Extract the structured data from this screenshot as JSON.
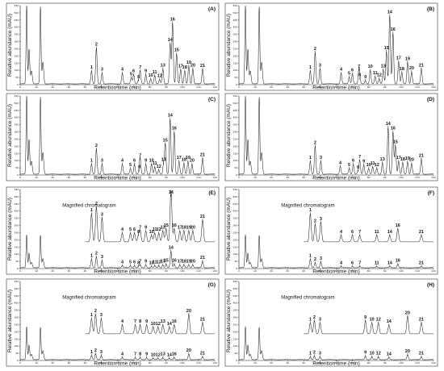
{
  "figure_name": "chromatogram-figure",
  "xlabel": "Retention time (min)",
  "ylabel": "Relative abundance (mAU)",
  "magnified_label": "Magnified chromatogram",
  "y_ticks": [
    "0",
    "50",
    "100",
    "150",
    "200",
    "250",
    "300",
    "350",
    "400",
    "450",
    "500",
    "550"
  ],
  "x_ticks": [
    "0",
    "10",
    "20",
    "30",
    "40",
    "50",
    "60",
    "70",
    "80",
    "90",
    "100",
    "110",
    "120"
  ],
  "chart_data": [
    {
      "type": "line",
      "panel": "(A)",
      "xlim": [
        0,
        120
      ],
      "ylim": [
        0,
        550
      ],
      "magnified": false,
      "peaks": [
        {
          "label": "1",
          "x": 44.0,
          "y": 95
        },
        {
          "label": "2",
          "x": 47.0,
          "y": 255
        },
        {
          "label": "3",
          "x": 50.5,
          "y": 80
        },
        {
          "label": "4",
          "x": 63.0,
          "y": 80
        },
        {
          "label": "5",
          "x": 68.5,
          "y": 48
        },
        {
          "label": "6",
          "x": 70.0,
          "y": 70
        },
        {
          "label": "7",
          "x": 74.0,
          "y": 95
        },
        {
          "label": "8",
          "x": 73.0,
          "y": 28
        },
        {
          "label": "9",
          "x": 77.5,
          "y": 70
        },
        {
          "label": "10",
          "x": 80.5,
          "y": 38
        },
        {
          "label": "11",
          "x": 83.0,
          "y": 62
        },
        {
          "label": "12",
          "x": 86.0,
          "y": 36
        },
        {
          "label": "13",
          "x": 88.0,
          "y": 110
        },
        {
          "label": "14",
          "x": 92.5,
          "y": 285
        },
        {
          "label": "15",
          "x": 96.5,
          "y": 215
        },
        {
          "label": "16",
          "x": 94.0,
          "y": 430
        },
        {
          "label": "17",
          "x": 99.0,
          "y": 105
        },
        {
          "label": "18",
          "x": 101.5,
          "y": 95
        },
        {
          "label": "19",
          "x": 104.0,
          "y": 130
        },
        {
          "label": "20",
          "x": 106.5,
          "y": 110
        },
        {
          "label": "21",
          "x": 112.5,
          "y": 108
        }
      ]
    },
    {
      "type": "line",
      "panel": "(B)",
      "xlim": [
        0,
        120
      ],
      "ylim": [
        0,
        550
      ],
      "magnified": false,
      "peaks": [
        {
          "label": "1",
          "x": 44.0,
          "y": 95
        },
        {
          "label": "2",
          "x": 47.0,
          "y": 225
        },
        {
          "label": "3",
          "x": 50.0,
          "y": 110
        },
        {
          "label": "4",
          "x": 63.0,
          "y": 80
        },
        {
          "label": "5",
          "x": 68.0,
          "y": 52
        },
        {
          "label": "6",
          "x": 70.0,
          "y": 75
        },
        {
          "label": "7",
          "x": 74.0,
          "y": 100
        },
        {
          "label": "8",
          "x": 74.5,
          "y": 42
        },
        {
          "label": "9",
          "x": 78.0,
          "y": 28
        },
        {
          "label": "10",
          "x": 81.0,
          "y": 100
        },
        {
          "label": "11",
          "x": 84.0,
          "y": 55
        },
        {
          "label": "12",
          "x": 86.5,
          "y": 42
        },
        {
          "label": "13",
          "x": 89.0,
          "y": 105
        },
        {
          "label": "14",
          "x": 93.0,
          "y": 480
        },
        {
          "label": "15",
          "x": 91.0,
          "y": 230
        },
        {
          "label": "16",
          "x": 95.0,
          "y": 360
        },
        {
          "label": "17",
          "x": 98.5,
          "y": 160
        },
        {
          "label": "18",
          "x": 100.5,
          "y": 85
        },
        {
          "label": "19",
          "x": 104.0,
          "y": 155
        },
        {
          "label": "20",
          "x": 106.5,
          "y": 90
        },
        {
          "label": "21",
          "x": 112.5,
          "y": 110
        }
      ]
    },
    {
      "type": "line",
      "panel": "(C)",
      "xlim": [
        0,
        120
      ],
      "ylim": [
        0,
        550
      ],
      "magnified": false,
      "peaks": [
        {
          "label": "1",
          "x": 44.0,
          "y": 75
        },
        {
          "label": "2",
          "x": 47.0,
          "y": 180
        },
        {
          "label": "3",
          "x": 50.5,
          "y": 75
        },
        {
          "label": "4",
          "x": 63.0,
          "y": 75
        },
        {
          "label": "5",
          "x": 68.0,
          "y": 45
        },
        {
          "label": "6",
          "x": 70.5,
          "y": 75
        },
        {
          "label": "7",
          "x": 74.0,
          "y": 110
        },
        {
          "label": "8",
          "x": 73.5,
          "y": 30
        },
        {
          "label": "9",
          "x": 77.5,
          "y": 75
        },
        {
          "label": "10",
          "x": 81.0,
          "y": 75
        },
        {
          "label": "11",
          "x": 83.0,
          "y": 55
        },
        {
          "label": "12",
          "x": 85.5,
          "y": 35
        },
        {
          "label": "13",
          "x": 88.5,
          "y": 80
        },
        {
          "label": "14",
          "x": 92.5,
          "y": 390
        },
        {
          "label": "15",
          "x": 89.5,
          "y": 215
        },
        {
          "label": "16",
          "x": 95.0,
          "y": 300
        },
        {
          "label": "17",
          "x": 98.0,
          "y": 95
        },
        {
          "label": "18",
          "x": 101.0,
          "y": 80
        },
        {
          "label": "19",
          "x": 103.5,
          "y": 95
        },
        {
          "label": "20",
          "x": 106.0,
          "y": 75
        },
        {
          "label": "21",
          "x": 112.5,
          "y": 115
        }
      ]
    },
    {
      "type": "line",
      "panel": "(D)",
      "xlim": [
        0,
        120
      ],
      "ylim": [
        0,
        550
      ],
      "magnified": false,
      "peaks": [
        {
          "label": "1",
          "x": 44.0,
          "y": 95
        },
        {
          "label": "2",
          "x": 47.0,
          "y": 200
        },
        {
          "label": "3",
          "x": 50.5,
          "y": 95
        },
        {
          "label": "4",
          "x": 62.5,
          "y": 60
        },
        {
          "label": "5",
          "x": 68.0,
          "y": 45
        },
        {
          "label": "6",
          "x": 70.5,
          "y": 75
        },
        {
          "label": "7",
          "x": 74.5,
          "y": 100
        },
        {
          "label": "8",
          "x": 73.5,
          "y": 28
        },
        {
          "label": "9",
          "x": 77.0,
          "y": 70
        },
        {
          "label": "10",
          "x": 80.0,
          "y": 45
        },
        {
          "label": "11",
          "x": 82.5,
          "y": 55
        },
        {
          "label": "12",
          "x": 85.0,
          "y": 45
        },
        {
          "label": "13",
          "x": 88.5,
          "y": 85
        },
        {
          "label": "14",
          "x": 92.0,
          "y": 330
        },
        {
          "label": "15",
          "x": 96.5,
          "y": 205
        },
        {
          "label": "16",
          "x": 95.0,
          "y": 300
        },
        {
          "label": "17",
          "x": 98.5,
          "y": 95
        },
        {
          "label": "18",
          "x": 101.0,
          "y": 85
        },
        {
          "label": "19",
          "x": 104.0,
          "y": 90
        },
        {
          "label": "20",
          "x": 106.5,
          "y": 80
        },
        {
          "label": "21",
          "x": 112.5,
          "y": 110
        }
      ]
    },
    {
      "type": "line",
      "panel": "(E)",
      "xlim": [
        0,
        120
      ],
      "ylim": [
        0,
        550
      ],
      "magnified": true,
      "peaks": [
        {
          "label": "1",
          "x": 44.0,
          "y": 65
        },
        {
          "label": "2",
          "x": 47.0,
          "y": 80
        },
        {
          "label": "3",
          "x": 50.5,
          "y": 55
        },
        {
          "label": "4",
          "x": 63.0,
          "y": 20
        },
        {
          "label": "5",
          "x": 68.0,
          "y": 20
        },
        {
          "label": "6",
          "x": 70.5,
          "y": 20
        },
        {
          "label": "7",
          "x": 74.0,
          "y": 25
        },
        {
          "label": "8",
          "x": 73.0,
          "y": 15
        },
        {
          "label": "9",
          "x": 77.5,
          "y": 25
        },
        {
          "label": "10",
          "x": 81.0,
          "y": 15
        },
        {
          "label": "11",
          "x": 83.0,
          "y": 20
        },
        {
          "label": "12",
          "x": 85.5,
          "y": 20
        },
        {
          "label": "13",
          "x": 88.0,
          "y": 25
        },
        {
          "label": "14",
          "x": 93.0,
          "y": 120
        },
        {
          "label": "15",
          "x": 90.0,
          "y": 30
        },
        {
          "label": "16",
          "x": 95.0,
          "y": 30
        },
        {
          "label": "17",
          "x": 98.5,
          "y": 25
        },
        {
          "label": "18",
          "x": 101.0,
          "y": 25
        },
        {
          "label": "19",
          "x": 104.0,
          "y": 25
        },
        {
          "label": "20",
          "x": 106.5,
          "y": 25
        },
        {
          "label": "21",
          "x": 112.5,
          "y": 50
        }
      ]
    },
    {
      "type": "line",
      "panel": "(F)",
      "xlim": [
        0,
        120
      ],
      "ylim": [
        0,
        550
      ],
      "magnified": true,
      "peaks": [
        {
          "label": "1",
          "x": 44.0,
          "y": 65
        },
        {
          "label": "2",
          "x": 47.0,
          "y": 40
        },
        {
          "label": "3",
          "x": 50.5,
          "y": 45
        },
        {
          "label": "4",
          "x": 63.0,
          "y": 15
        },
        {
          "label": "6",
          "x": 70.0,
          "y": 15
        },
        {
          "label": "7",
          "x": 74.5,
          "y": 15
        },
        {
          "label": "11",
          "x": 85.0,
          "y": 15
        },
        {
          "label": "14",
          "x": 93.0,
          "y": 15
        },
        {
          "label": "16",
          "x": 98.0,
          "y": 30
        },
        {
          "label": "21",
          "x": 112.5,
          "y": 15
        }
      ]
    },
    {
      "type": "line",
      "panel": "(G)",
      "xlim": [
        0,
        120
      ],
      "ylim": [
        0,
        550
      ],
      "magnified": true,
      "peaks": [
        {
          "label": "1",
          "x": 44.0,
          "y": 35
        },
        {
          "label": "2",
          "x": 46.5,
          "y": 45
        },
        {
          "label": "3",
          "x": 50.0,
          "y": 35
        },
        {
          "label": "4",
          "x": 63.0,
          "y": 20
        },
        {
          "label": "7",
          "x": 71.0,
          "y": 20
        },
        {
          "label": "8",
          "x": 74.0,
          "y": 20
        },
        {
          "label": "9",
          "x": 78.0,
          "y": 20
        },
        {
          "label": "10",
          "x": 82.0,
          "y": 15
        },
        {
          "label": "12",
          "x": 85.0,
          "y": 15
        },
        {
          "label": "13",
          "x": 88.0,
          "y": 20
        },
        {
          "label": "14",
          "x": 92.0,
          "y": 15
        },
        {
          "label": "16",
          "x": 95.0,
          "y": 20
        },
        {
          "label": "20",
          "x": 104.0,
          "y": 45
        },
        {
          "label": "21",
          "x": 112.5,
          "y": 25
        }
      ]
    },
    {
      "type": "line",
      "panel": "(H)",
      "xlim": [
        0,
        120
      ],
      "ylim": [
        0,
        550
      ],
      "magnified": true,
      "peaks": [
        {
          "label": "1",
          "x": 44.0,
          "y": 25
        },
        {
          "label": "2",
          "x": 46.5,
          "y": 30
        },
        {
          "label": "3",
          "x": 50.0,
          "y": 25
        },
        {
          "label": "9",
          "x": 78.0,
          "y": 30
        },
        {
          "label": "10",
          "x": 82.0,
          "y": 25
        },
        {
          "label": "12",
          "x": 86.0,
          "y": 25
        },
        {
          "label": "14",
          "x": 92.5,
          "y": 20
        },
        {
          "label": "20",
          "x": 104.0,
          "y": 40
        },
        {
          "label": "21",
          "x": 112.5,
          "y": 25
        }
      ]
    }
  ]
}
